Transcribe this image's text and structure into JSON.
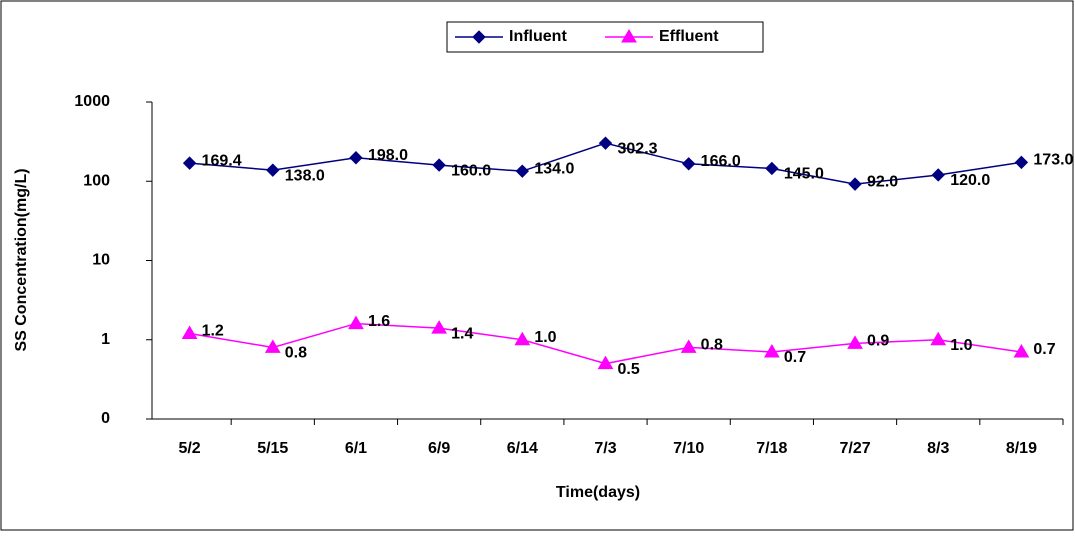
{
  "chart_data": {
    "type": "line",
    "x_label": "Time(days)",
    "y_label": "SS Concentration(mg/L)",
    "categories": [
      "5/2",
      "5/15",
      "6/1",
      "6/9",
      "6/14",
      "7/3",
      "7/10",
      "7/18",
      "7/27",
      "8/3",
      "8/19"
    ],
    "series": [
      {
        "name": "Influent",
        "color": "#000080",
        "marker": "diamond",
        "values": [
          169.4,
          138,
          198,
          160,
          134,
          302.3,
          166,
          145,
          92,
          120,
          173
        ],
        "value_labels": [
          "169.4",
          "138.0",
          "198.0",
          "160.0",
          "134.0",
          "302.3",
          "166.0",
          "145.0",
          "92.0",
          "120.0",
          "173.0"
        ]
      },
      {
        "name": "Effluent",
        "color": "#ff00ff",
        "marker": "triangle",
        "values": [
          1.2,
          0.8,
          1.6,
          1.4,
          1.0,
          0.5,
          0.8,
          0.7,
          0.9,
          1.0,
          0.7
        ],
        "value_labels": [
          "1.2",
          "0.8",
          "1.6",
          "1.4",
          "1.0",
          "0.5",
          "0.8",
          "0.7",
          "0.9",
          "1.0",
          "0.7"
        ]
      }
    ],
    "log_scale": true,
    "ylim": [
      0.1,
      1000
    ],
    "yticks": [
      {
        "value": 0.1,
        "label": "0"
      },
      1,
      10,
      100,
      1000
    ],
    "legend": "top"
  }
}
